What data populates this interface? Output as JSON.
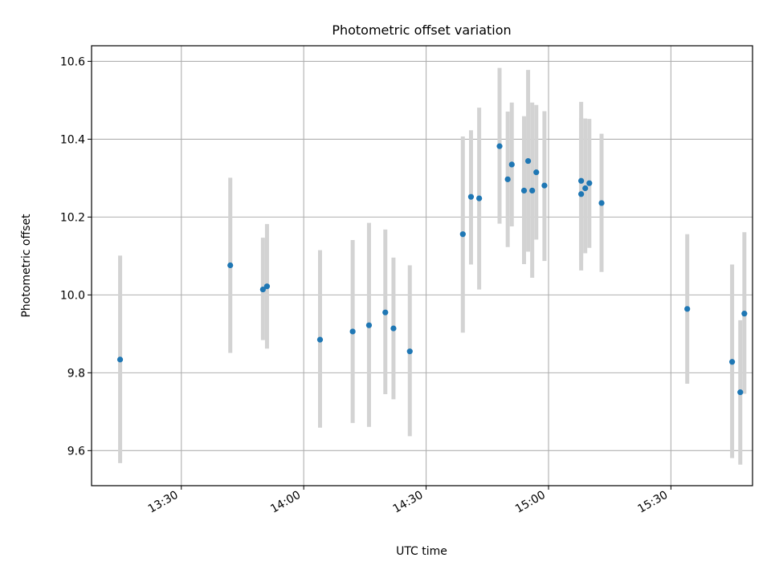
{
  "chart_data": {
    "type": "scatter",
    "title": "Photometric offset variation",
    "xlabel": "UTC time",
    "ylabel": "Photometric offset",
    "grid": true,
    "xlim": [
      "13:08",
      "15:50"
    ],
    "ylim": [
      9.51,
      10.64
    ],
    "x_ticks": [
      "13:30",
      "14:00",
      "14:30",
      "15:00",
      "15:30"
    ],
    "y_ticks": [
      9.6,
      9.8,
      10.0,
      10.2,
      10.4,
      10.6
    ],
    "colors": {
      "points": "#1f77b4",
      "errorbars": "#d3d3d3",
      "grid": "#b0b0b0"
    },
    "points": [
      {
        "x": "13:15",
        "y": 9.834,
        "ylow": 9.568,
        "yhigh": 10.101
      },
      {
        "x": "13:42",
        "y": 10.076,
        "ylow": 9.851,
        "yhigh": 10.301
      },
      {
        "x": "13:50",
        "y": 10.014,
        "ylow": 9.884,
        "yhigh": 10.147
      },
      {
        "x": "13:51",
        "y": 10.022,
        "ylow": 9.862,
        "yhigh": 10.182
      },
      {
        "x": "14:04",
        "y": 9.885,
        "ylow": 9.659,
        "yhigh": 10.115
      },
      {
        "x": "14:12",
        "y": 9.906,
        "ylow": 9.671,
        "yhigh": 10.141
      },
      {
        "x": "14:16",
        "y": 9.922,
        "ylow": 9.661,
        "yhigh": 10.185
      },
      {
        "x": "14:20",
        "y": 9.955,
        "ylow": 9.745,
        "yhigh": 10.168
      },
      {
        "x": "14:22",
        "y": 9.914,
        "ylow": 9.732,
        "yhigh": 10.096
      },
      {
        "x": "14:26",
        "y": 9.855,
        "ylow": 9.637,
        "yhigh": 10.076
      },
      {
        "x": "14:39",
        "y": 10.156,
        "ylow": 9.903,
        "yhigh": 10.407
      },
      {
        "x": "14:41",
        "y": 10.252,
        "ylow": 10.078,
        "yhigh": 10.423
      },
      {
        "x": "14:43",
        "y": 10.248,
        "ylow": 10.014,
        "yhigh": 10.481
      },
      {
        "x": "14:48",
        "y": 10.382,
        "ylow": 10.183,
        "yhigh": 10.583
      },
      {
        "x": "14:50",
        "y": 10.297,
        "ylow": 10.123,
        "yhigh": 10.471
      },
      {
        "x": "14:51",
        "y": 10.335,
        "ylow": 10.176,
        "yhigh": 10.494
      },
      {
        "x": "14:54",
        "y": 10.268,
        "ylow": 10.079,
        "yhigh": 10.459
      },
      {
        "x": "14:55",
        "y": 10.344,
        "ylow": 10.111,
        "yhigh": 10.578
      },
      {
        "x": "14:56",
        "y": 10.268,
        "ylow": 10.044,
        "yhigh": 10.494
      },
      {
        "x": "14:57",
        "y": 10.315,
        "ylow": 10.142,
        "yhigh": 10.488
      },
      {
        "x": "14:59",
        "y": 10.281,
        "ylow": 10.087,
        "yhigh": 10.472
      },
      {
        "x": "15:08",
        "y": 10.293,
        "ylow": 10.09,
        "yhigh": 10.496
      },
      {
        "x": "15:08",
        "y": 10.259,
        "ylow": 10.063,
        "yhigh": 10.455
      },
      {
        "x": "15:09",
        "y": 10.274,
        "ylow": 10.107,
        "yhigh": 10.453
      },
      {
        "x": "15:10",
        "y": 10.287,
        "ylow": 10.121,
        "yhigh": 10.452
      },
      {
        "x": "15:13",
        "y": 10.236,
        "ylow": 10.059,
        "yhigh": 10.414
      },
      {
        "x": "15:34",
        "y": 9.964,
        "ylow": 9.772,
        "yhigh": 10.156
      },
      {
        "x": "15:45",
        "y": 9.828,
        "ylow": 9.581,
        "yhigh": 10.078
      },
      {
        "x": "15:47",
        "y": 9.75,
        "ylow": 9.564,
        "yhigh": 9.935
      },
      {
        "x": "15:48",
        "y": 9.952,
        "ylow": 9.746,
        "yhigh": 10.161
      }
    ]
  }
}
